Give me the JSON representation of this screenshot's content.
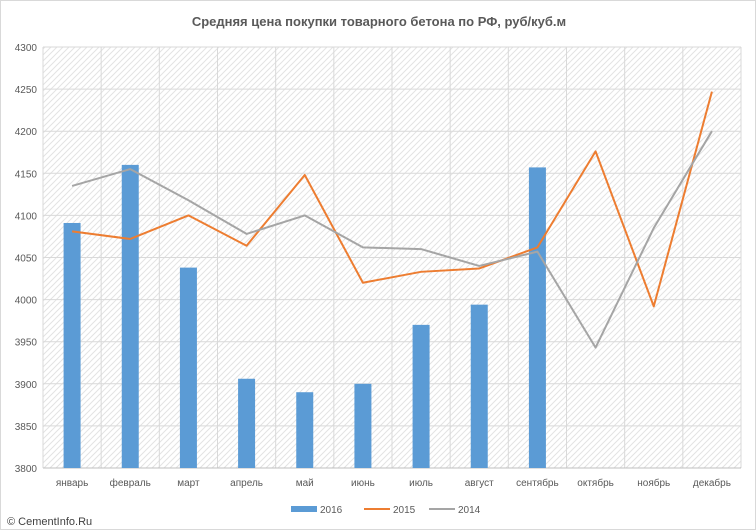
{
  "chart_data": {
    "type": "bar",
    "title": "Средняя цена покупки товарного бетона по РФ, руб/куб.м",
    "xlabel": "",
    "ylabel": "",
    "ylim": [
      3800,
      4300
    ],
    "ytick_step": 50,
    "grid": true,
    "legend_position": "bottom",
    "categories": [
      "январь",
      "февраль",
      "март",
      "апрель",
      "май",
      "июнь",
      "июль",
      "август",
      "сентябрь",
      "октябрь",
      "ноябрь",
      "декабрь"
    ],
    "series": [
      {
        "name": "2016",
        "type": "bar",
        "color": "#5b9bd5",
        "values": [
          4091,
          4160,
          4038,
          3906,
          3890,
          3900,
          3970,
          3994,
          4157,
          null,
          null,
          null
        ]
      },
      {
        "name": "2015",
        "type": "line",
        "color": "#ed7d31",
        "values": [
          4081,
          4072,
          4100,
          4064,
          4148,
          4020,
          4033,
          4037,
          4062,
          4176,
          3992,
          4247
        ]
      },
      {
        "name": "2014",
        "type": "line",
        "color": "#a5a5a5",
        "values": [
          4135,
          4155,
          4118,
          4078,
          4100,
          4062,
          4060,
          4040,
          4057,
          3943,
          4085,
          4200
        ]
      }
    ]
  },
  "watermark": "© CementInfo.Ru",
  "colors": {
    "grid": "#d9d9d9",
    "hatch": "#e3e3e3",
    "axis": "#bfbfbf"
  }
}
